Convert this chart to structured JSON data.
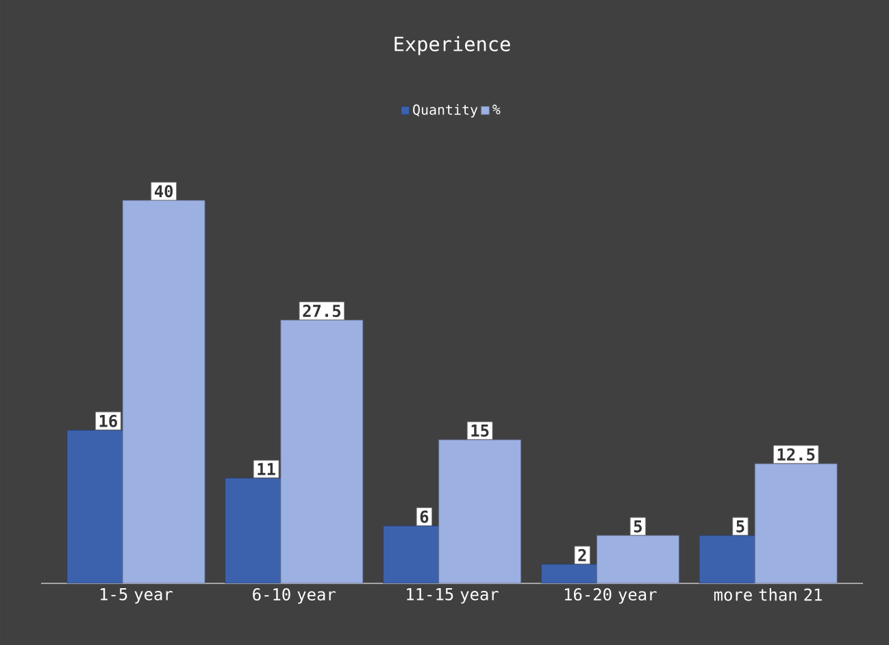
{
  "chart_data": {
    "type": "bar",
    "title": "Experience",
    "categories": [
      "1-5 year",
      "6-10 year",
      "11-15 year",
      "16-20 year",
      "more than 21"
    ],
    "series": [
      {
        "name": "Quantity",
        "color": "#3d62ad",
        "values": [
          16,
          11,
          6,
          2,
          5
        ]
      },
      {
        "name": "%",
        "color": "#9cb0e2",
        "values": [
          40,
          27.5,
          15,
          5,
          12.5
        ]
      }
    ],
    "data_labels": true,
    "legend": "top"
  }
}
